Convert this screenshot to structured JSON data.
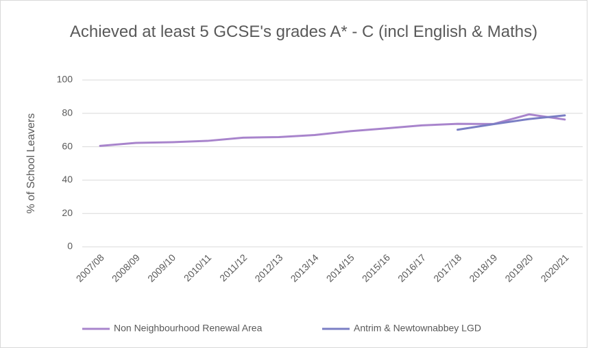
{
  "chart_data": {
    "type": "line",
    "title": "Achieved at least 5 GCSE's grades A* - C (incl English & Maths)",
    "y_label": "% of School Leavers",
    "categories": [
      "2007/08",
      "2008/09",
      "2009/10",
      "2010/11",
      "2011/12",
      "2012/13",
      "2013/14",
      "2014/15",
      "2015/16",
      "2016/17",
      "2017/18",
      "2018/19",
      "2019/20",
      "2020/21"
    ],
    "series": [
      {
        "name": "Non Neighbourhood Renewal Area",
        "color": "#a884cc",
        "values": [
          60.5,
          62.3,
          62.7,
          63.5,
          65.4,
          65.8,
          67.0,
          69.3,
          71.0,
          72.8,
          73.7,
          73.6,
          79.4,
          76.3
        ]
      },
      {
        "name": "Antrim & Newtownabbey LGD",
        "color": "#7a7ec4",
        "values": [
          null,
          null,
          null,
          null,
          null,
          null,
          null,
          null,
          null,
          null,
          70.2,
          73.5,
          76.6,
          78.8
        ]
      }
    ],
    "ylim": [
      0,
      100
    ],
    "yticks": [
      0,
      20,
      40,
      60,
      80,
      100
    ],
    "grid": true,
    "legend": "bottom"
  }
}
